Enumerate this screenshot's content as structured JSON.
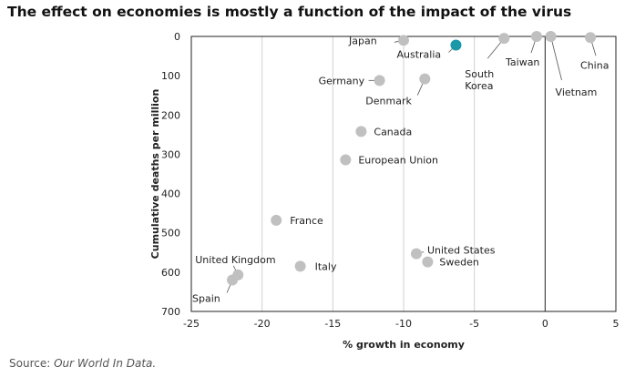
{
  "chart_data": {
    "type": "scatter",
    "title": "The effect on economies is mostly a function of the impact of the virus",
    "xlabel": "% growth in economy",
    "ylabel": "Cumulative deaths per million",
    "xlim": [
      -25,
      5
    ],
    "ylim": [
      0,
      700
    ],
    "y_inverted": true,
    "xticks": [
      -25,
      -20,
      -15,
      -10,
      -5,
      0,
      5
    ],
    "yticks": [
      0,
      100,
      200,
      300,
      400,
      500,
      600,
      700
    ],
    "grid": "vertical",
    "points": [
      {
        "name": "Japan",
        "x": -10.0,
        "y": 10,
        "highlight": false
      },
      {
        "name": "Australia",
        "x": -6.3,
        "y": 22,
        "highlight": true
      },
      {
        "name": "South Korea",
        "x": -2.9,
        "y": 5,
        "highlight": false
      },
      {
        "name": "Taiwan",
        "x": -0.6,
        "y": 0,
        "highlight": false
      },
      {
        "name": "Vietnam",
        "x": 0.4,
        "y": 0,
        "highlight": false
      },
      {
        "name": "China",
        "x": 3.2,
        "y": 3,
        "highlight": false
      },
      {
        "name": "Germany",
        "x": -11.7,
        "y": 112,
        "highlight": false
      },
      {
        "name": "Denmark",
        "x": -8.5,
        "y": 108,
        "highlight": false
      },
      {
        "name": "Canada",
        "x": -13.0,
        "y": 242,
        "highlight": false
      },
      {
        "name": "European Union",
        "x": -14.1,
        "y": 314,
        "highlight": false
      },
      {
        "name": "France",
        "x": -19.0,
        "y": 468,
        "highlight": false
      },
      {
        "name": "United States",
        "x": -9.1,
        "y": 553,
        "highlight": false
      },
      {
        "name": "Sweden",
        "x": -8.3,
        "y": 574,
        "highlight": false
      },
      {
        "name": "Italy",
        "x": -17.3,
        "y": 585,
        "highlight": false
      },
      {
        "name": "United Kingdom",
        "x": -21.7,
        "y": 607,
        "highlight": false
      },
      {
        "name": "Spain",
        "x": -22.1,
        "y": 620,
        "highlight": false
      }
    ],
    "colors": {
      "point": "#c0c0c0",
      "highlight": "#1a98a8",
      "axis": "#222222",
      "grid": "#d0d0d0"
    }
  },
  "source_prefix": "Source:",
  "source_name": "Our World In Data."
}
